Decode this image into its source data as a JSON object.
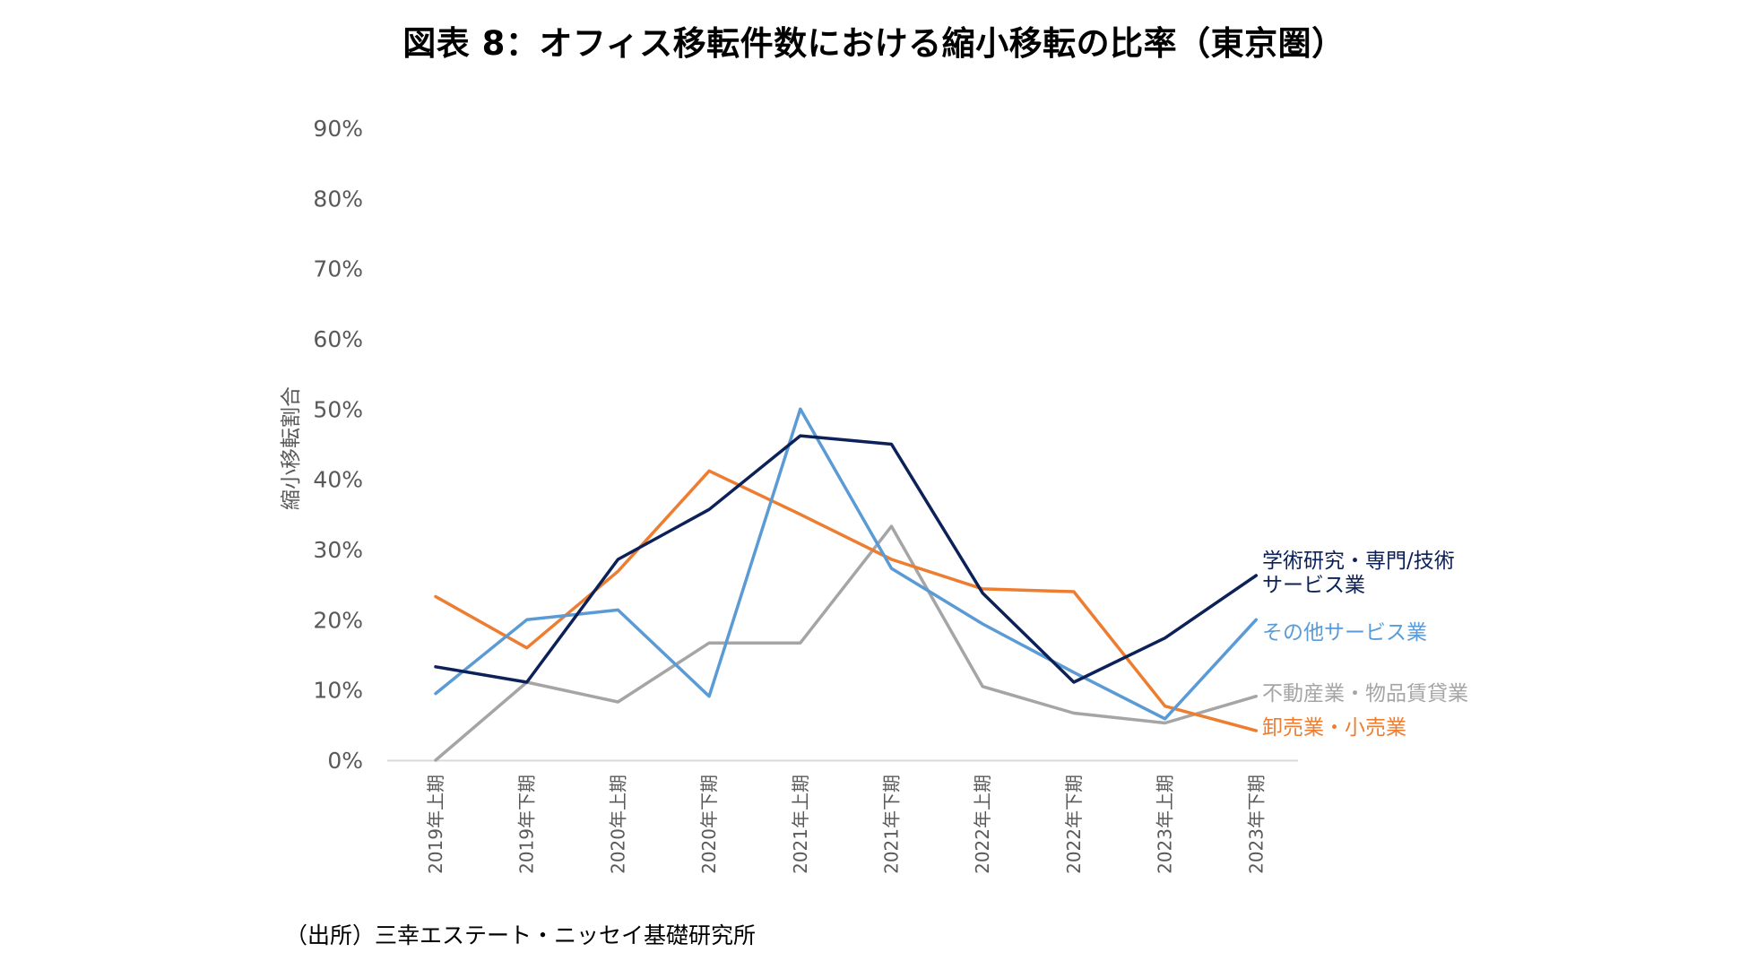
{
  "chart_data": {
    "type": "line",
    "title": "図表 8：オフィス移転件数における縮小移転の比率（東京圏）",
    "xlabel": "",
    "ylabel": "縮小移転割合",
    "ylim": [
      0,
      90
    ],
    "yticks": [
      "0%",
      "10%",
      "20%",
      "30%",
      "40%",
      "50%",
      "60%",
      "70%",
      "80%",
      "90%"
    ],
    "grid": false,
    "categories": [
      "2019年上期",
      "2019年下期",
      "2020年上期",
      "2020年下期",
      "2021年上期",
      "2021年下期",
      "2022年上期",
      "2022年下期",
      "2023年上期",
      "2023年下期"
    ],
    "series": [
      {
        "name": "学術研究・専門/技術サービス業",
        "label_lines": [
          "学術研究・専門/技術",
          "サービス業"
        ],
        "color": "#0d2159",
        "values": [
          13.3,
          11.1,
          28.6,
          35.7,
          46.2,
          45.0,
          23.8,
          11.1,
          17.4,
          26.3
        ]
      },
      {
        "name": "その他サービス業",
        "label_lines": [
          "その他サービス業"
        ],
        "color": "#5b9bd5",
        "values": [
          9.5,
          20.0,
          21.4,
          9.1,
          50.0,
          27.3,
          19.4,
          12.5,
          5.9,
          20.0
        ]
      },
      {
        "name": "不動産業・物品賃貸業",
        "label_lines": [
          "不動産業・物品賃貸業"
        ],
        "color": "#a5a5a5",
        "values": [
          0.0,
          11.1,
          8.3,
          16.7,
          16.7,
          33.3,
          10.5,
          6.7,
          5.3,
          9.1
        ]
      },
      {
        "name": "卸売業・小売業",
        "label_lines": [
          "卸売業・小売業"
        ],
        "color": "#ed7d31",
        "values": [
          23.3,
          16.0,
          26.9,
          41.2,
          35.0,
          28.6,
          24.4,
          24.0,
          7.7,
          4.2
        ]
      }
    ],
    "source": "（出所）三幸エステート・ニッセイ基礎研究所"
  }
}
